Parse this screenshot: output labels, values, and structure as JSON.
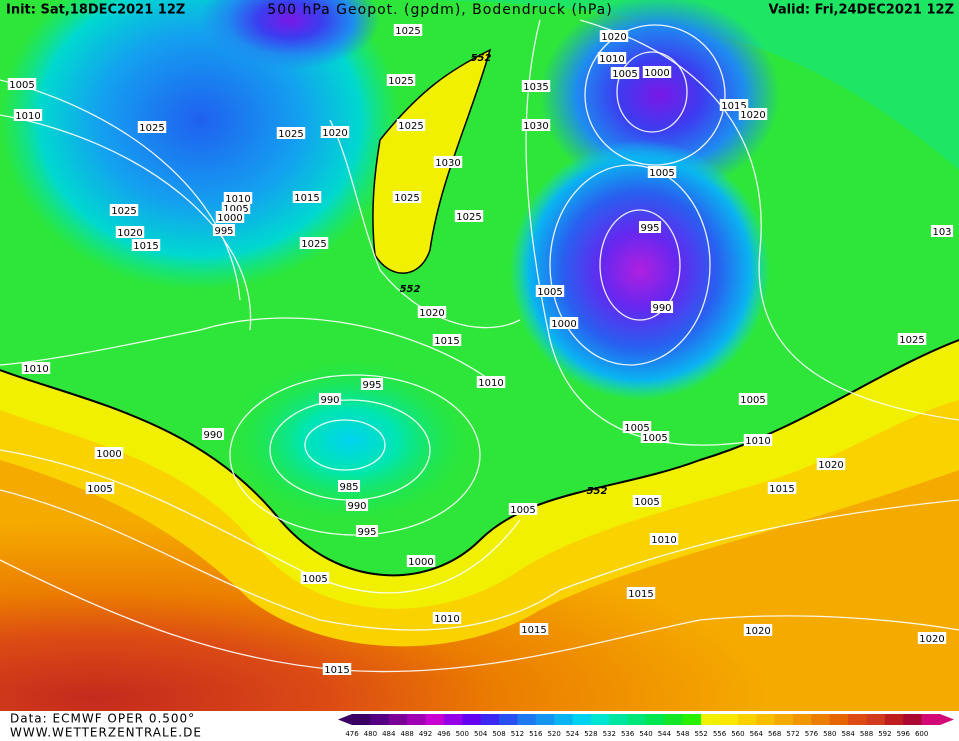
{
  "header": {
    "init": "Init: Sat,18DEC2021 12Z",
    "title": "500 hPa Geopot. (gpdm), Bodendruck (hPa)",
    "valid": "Valid: Fri,24DEC2021 12Z"
  },
  "isobar_labels": [
    1025,
    1005,
    1010,
    1025,
    1025,
    1025,
    1020,
    1025,
    1030,
    1015,
    1025,
    1025,
    1025,
    1020,
    1015,
    1010,
    1005,
    1000,
    995,
    1025,
    552,
    1020,
    1015,
    1010,
    995,
    1010,
    990,
    990,
    1000,
    1005,
    985,
    990,
    995,
    1000,
    1005,
    1005,
    552,
    1010,
    1015,
    1015,
    552,
    1035,
    1030,
    1020,
    1010,
    1005,
    1000,
    1015,
    1020,
    1005,
    995,
    1005,
    1000,
    990,
    103,
    1025,
    1005,
    1005,
    1005,
    1010,
    1020,
    1015,
    1005,
    1010,
    1015,
    1020,
    1020
  ],
  "footer": {
    "data": "Data: ECMWF OPER 0.500°",
    "site": "WWW.WETTERZENTRALE.DE"
  },
  "legend": {
    "values": [
      476,
      480,
      484,
      488,
      492,
      496,
      500,
      504,
      508,
      512,
      516,
      520,
      524,
      528,
      532,
      536,
      540,
      544,
      548,
      552,
      556,
      560,
      564,
      568,
      572,
      576,
      580,
      584,
      588,
      592,
      596,
      600
    ],
    "colors": [
      "#3c0064",
      "#550082",
      "#7a0096",
      "#a000b4",
      "#c800d2",
      "#9600e6",
      "#6400f0",
      "#3c28f0",
      "#2850f0",
      "#1e78f0",
      "#1496f0",
      "#0ab4f0",
      "#00d2f0",
      "#00e6d2",
      "#00e6a0",
      "#00e678",
      "#00e650",
      "#14e628",
      "#28f000",
      "#f0f000",
      "#fae600",
      "#fad200",
      "#fabe00",
      "#f5aa00",
      "#f09600",
      "#eb7d00",
      "#e66400",
      "#dc4b14",
      "#d23c1e",
      "#be1e1e",
      "#aa0a32",
      "#d20a78"
    ]
  }
}
